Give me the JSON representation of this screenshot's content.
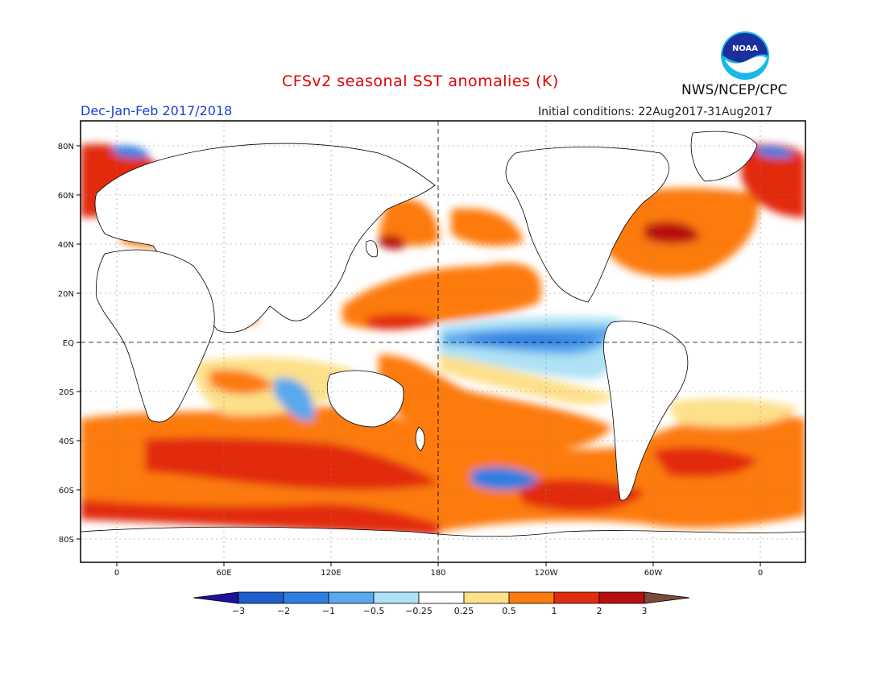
{
  "header": {
    "title": "CFSv2 seasonal SST anomalies (K)",
    "season": "Dec-Jan-Feb 2017/2018",
    "initial_conditions": "Initial conditions: 22Aug2017-31Aug2017",
    "agency": "NWS/NCEP/CPC",
    "logo_text": "NOAA"
  },
  "map": {
    "lat_labels": [
      "80N",
      "60N",
      "40N",
      "20N",
      "EQ",
      "20S",
      "40S",
      "60S",
      "80S"
    ],
    "lon_labels": [
      "0",
      "60E",
      "120E",
      "180",
      "120W",
      "60W",
      "0"
    ]
  },
  "colorbar": {
    "labels": [
      "-3",
      "-2",
      "-1",
      "-0.5",
      "-0.25",
      "0.25",
      "0.5",
      "1",
      "2",
      "3"
    ],
    "colors": [
      "#1e0f9c",
      "#1f5fcc",
      "#2e7fe0",
      "#5aa8ee",
      "#aee2f4",
      "#ffffff",
      "#fde08a",
      "#fd7a11",
      "#e22b10",
      "#b80f0f",
      "#7b4a3a"
    ]
  },
  "colors": {
    "title": "#e00000",
    "season": "#1a3fd6",
    "ocean_neutral": "#ffffff",
    "land_outline": "#000000"
  }
}
